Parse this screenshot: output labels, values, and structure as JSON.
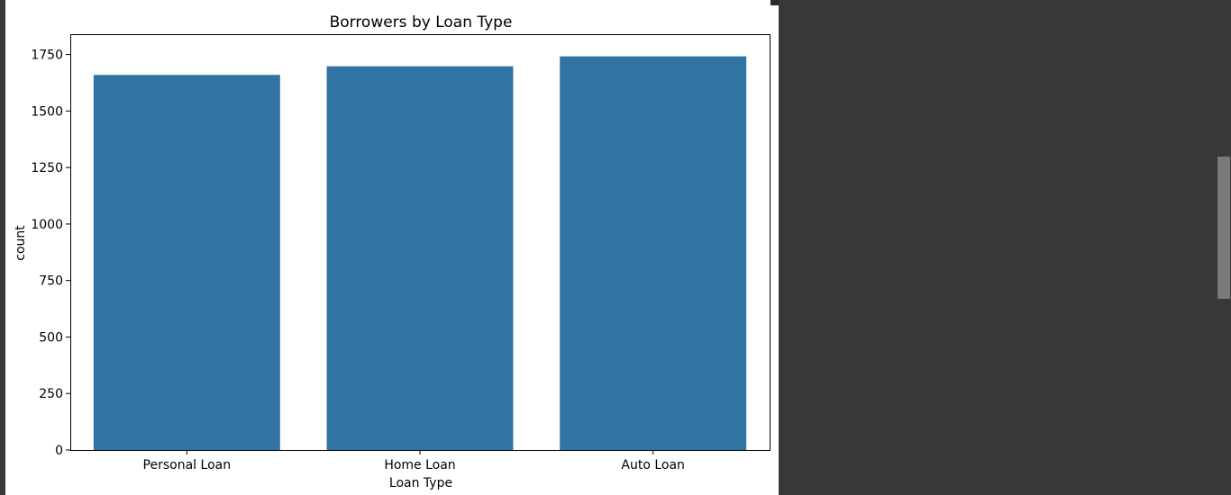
{
  "chart_data": {
    "type": "bar",
    "title": "Borrowers by Loan Type",
    "xlabel": "Loan Type",
    "ylabel": "count",
    "categories": [
      "Personal Loan",
      "Home Loan",
      "Auto Loan"
    ],
    "values": [
      1660,
      1698,
      1742
    ],
    "ylim": [
      0,
      1840
    ],
    "yticks": [
      0,
      250,
      500,
      750,
      1000,
      1250,
      1500,
      1750
    ],
    "bar_color": "#3274a1",
    "grid": false
  },
  "colors": {
    "background": "#383838",
    "panel": "#ffffff",
    "scrollbar_thumb": "#7a7a7a"
  }
}
